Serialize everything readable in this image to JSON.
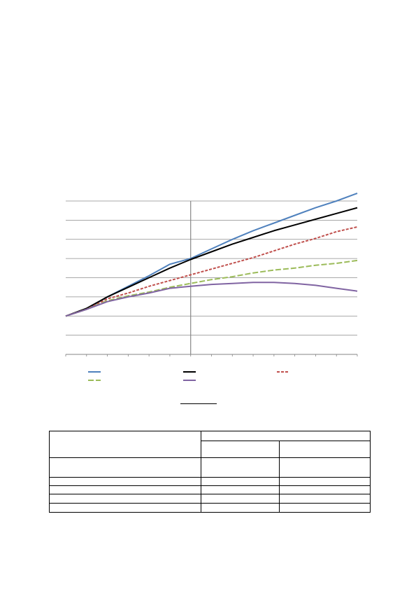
{
  "chart_data": {
    "type": "line",
    "title": "",
    "xlabel": "",
    "ylabel": "",
    "x_count": 15,
    "ylim": [
      -2,
      6
    ],
    "grid": true,
    "legend": "bottom",
    "divider_x_index": 6,
    "series": [
      {
        "name": "",
        "color": "#4f81bd",
        "dash": "solid",
        "values": [
          0,
          0.35,
          1.0,
          1.55,
          2.1,
          2.7,
          3.0,
          3.5,
          4.0,
          4.45,
          4.85,
          5.25,
          5.65,
          6.0,
          6.4
        ]
      },
      {
        "name": "",
        "color": "#000000",
        "dash": "solid",
        "values": [
          0,
          0.4,
          1.0,
          1.5,
          2.0,
          2.5,
          2.95,
          3.35,
          3.75,
          4.1,
          4.45,
          4.75,
          5.05,
          5.35,
          5.65
        ]
      },
      {
        "name": "",
        "color": "#c0504d",
        "dash": "dash",
        "values": [
          0,
          0.35,
          0.9,
          1.2,
          1.55,
          1.85,
          2.15,
          2.45,
          2.75,
          3.05,
          3.4,
          3.75,
          4.05,
          4.4,
          4.65
        ]
      },
      {
        "name": "",
        "color": "#9bbb59",
        "dash": "longdash",
        "values": [
          0,
          0.35,
          0.8,
          1.05,
          1.25,
          1.5,
          1.7,
          1.9,
          2.05,
          2.25,
          2.4,
          2.5,
          2.65,
          2.75,
          2.9
        ]
      },
      {
        "name": "",
        "color": "#8064a2",
        "dash": "solid",
        "values": [
          0,
          0.35,
          0.75,
          1.0,
          1.2,
          1.45,
          1.55,
          1.65,
          1.7,
          1.75,
          1.75,
          1.7,
          1.6,
          1.45,
          1.3
        ]
      }
    ]
  },
  "table": {
    "rows": [
      [
        "",
        "",
        ""
      ],
      [
        "",
        "",
        ""
      ],
      [
        "",
        "",
        ""
      ],
      [
        "",
        "",
        ""
      ],
      [
        "",
        "",
        ""
      ],
      [
        "",
        "",
        ""
      ],
      [
        "",
        "",
        ""
      ]
    ]
  }
}
